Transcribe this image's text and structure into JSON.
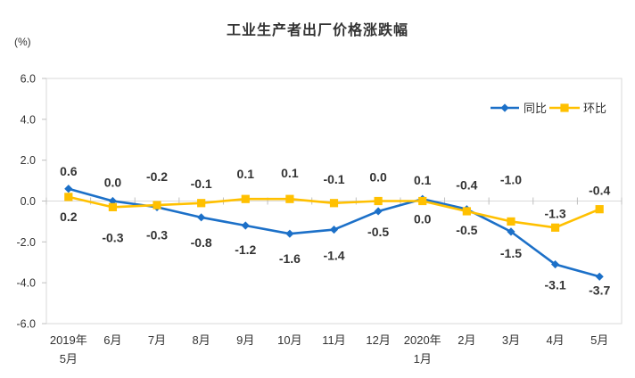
{
  "chart": {
    "title": "工业生产者出厂价格涨跌幅",
    "unit_label": "(%)"
  },
  "chart_data": {
    "type": "line",
    "title": "工业生产者出厂价格涨跌幅",
    "unit": "(%)",
    "categories": [
      [
        "2019年",
        "5月"
      ],
      [
        "6月"
      ],
      [
        "7月"
      ],
      [
        "8月"
      ],
      [
        "9月"
      ],
      [
        "10月"
      ],
      [
        "11月"
      ],
      [
        "12月"
      ],
      [
        "2020年",
        "1月"
      ],
      [
        "2月"
      ],
      [
        "3月"
      ],
      [
        "4月"
      ],
      [
        "5月"
      ]
    ],
    "ylim": [
      -6.0,
      6.0
    ],
    "ytick_step": 2.0,
    "yticks": [
      "6.0",
      "4.0",
      "2.0",
      "0.0",
      "-2.0",
      "-4.0",
      "-6.0"
    ],
    "grid": "zero-line-only",
    "legend_position": "top-right-inside",
    "series": [
      {
        "key": "yoy",
        "name": "同比",
        "color": "#1C70C8",
        "marker": "diamond",
        "values": [
          0.6,
          0.0,
          -0.3,
          -0.8,
          -1.2,
          -1.6,
          -1.4,
          -0.5,
          0.1,
          -0.4,
          -1.5,
          -3.1,
          -3.7
        ],
        "label_dy": [
          -15,
          -16,
          36,
          33,
          32,
          33,
          34,
          28,
          -16,
          -22,
          29,
          28,
          20
        ]
      },
      {
        "key": "mom",
        "name": "环比",
        "color": "#FFC000",
        "marker": "square",
        "values": [
          0.2,
          -0.3,
          -0.2,
          -0.1,
          0.1,
          0.1,
          -0.1,
          0.0,
          0.0,
          -0.5,
          -1.0,
          -1.3,
          -0.4
        ],
        "label_dy": [
          27,
          39,
          -27,
          -17,
          -23,
          -24,
          -22,
          -22,
          25,
          26,
          -42,
          -11,
          -16
        ]
      }
    ],
    "axis_colors": {
      "line": "#d9d9d9",
      "tick": "#bfbfbf",
      "text": "#333333"
    }
  }
}
